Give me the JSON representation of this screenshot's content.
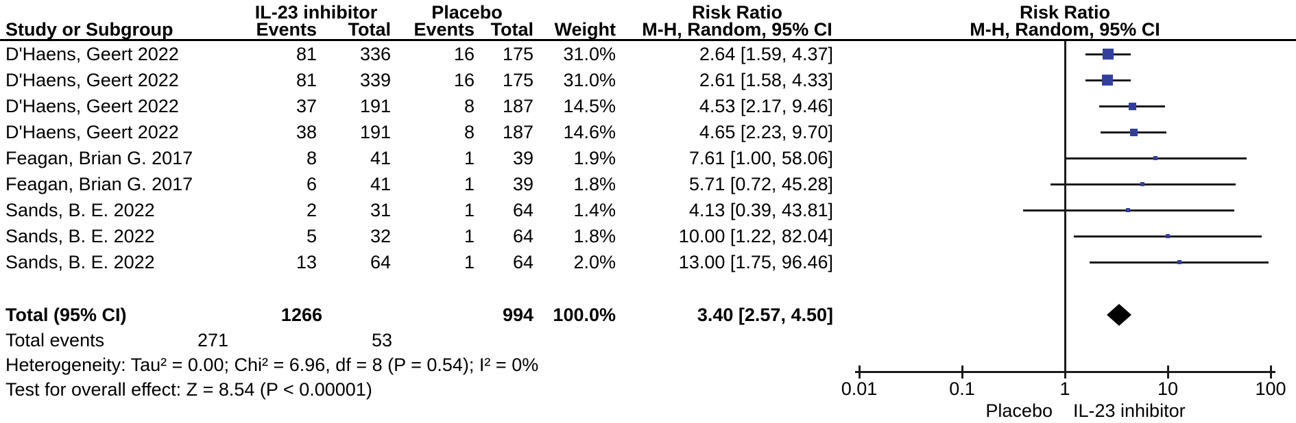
{
  "header": {
    "group1": "IL-23 inhibitor",
    "group2": "Placebo",
    "risk_ratio": "Risk Ratio",
    "method": "M-H, Random, 95% CI",
    "col_study": "Study or Subgroup",
    "col_events": "Events",
    "col_total": "Total",
    "col_weight": "Weight"
  },
  "studies": [
    {
      "name": "D'Haens, Geert 2022",
      "e1": "81",
      "t1": "336",
      "e2": "16",
      "t2": "175",
      "weight": "31.0%",
      "ci_text": "2.64 [1.59, 4.37]"
    },
    {
      "name": "D'Haens, Geert 2022",
      "e1": "81",
      "t1": "339",
      "e2": "16",
      "t2": "175",
      "weight": "31.0%",
      "ci_text": "2.61 [1.58, 4.33]"
    },
    {
      "name": "D'Haens, Geert 2022",
      "e1": "37",
      "t1": "191",
      "e2": "8",
      "t2": "187",
      "weight": "14.5%",
      "ci_text": "4.53 [2.17, 9.46]"
    },
    {
      "name": "D'Haens, Geert 2022",
      "e1": "38",
      "t1": "191",
      "e2": "8",
      "t2": "187",
      "weight": "14.6%",
      "ci_text": "4.65 [2.23, 9.70]"
    },
    {
      "name": "Feagan, Brian G. 2017",
      "e1": "8",
      "t1": "41",
      "e2": "1",
      "t2": "39",
      "weight": "1.9%",
      "ci_text": "7.61 [1.00, 58.06]"
    },
    {
      "name": "Feagan, Brian G. 2017",
      "e1": "6",
      "t1": "41",
      "e2": "1",
      "t2": "39",
      "weight": "1.8%",
      "ci_text": "5.71 [0.72, 45.28]"
    },
    {
      "name": "Sands, B. E. 2022",
      "e1": "2",
      "t1": "31",
      "e2": "1",
      "t2": "64",
      "weight": "1.4%",
      "ci_text": "4.13 [0.39, 43.81]"
    },
    {
      "name": "Sands, B. E. 2022",
      "e1": "5",
      "t1": "32",
      "e2": "1",
      "t2": "64",
      "weight": "1.8%",
      "ci_text": "10.00 [1.22, 82.04]"
    },
    {
      "name": "Sands, B. E. 2022",
      "e1": "13",
      "t1": "64",
      "e2": "1",
      "t2": "64",
      "weight": "2.0%",
      "ci_text": "13.00 [1.75, 96.46]"
    }
  ],
  "totals": {
    "label": "Total (95% CI)",
    "t1": "1266",
    "t2": "994",
    "weight": "100.0%",
    "ci_text": "3.40 [2.57, 4.50]",
    "events_label": "Total events",
    "e1": "271",
    "e2": "53"
  },
  "footer": {
    "heterogeneity": "Heterogeneity: Tau² = 0.00; Chi² = 6.96, df = 8 (P = 0.54); I² = 0%",
    "overall_effect": "Test for overall effect: Z = 8.54 (P < 0.00001)"
  },
  "axis": {
    "labels": [
      "0.01",
      "0.1",
      "1",
      "10",
      "100"
    ],
    "left_label": "Placebo",
    "right_label": "IL-23 inhibitor"
  },
  "colors": {
    "marker": "#333f9f",
    "diamond": "#000000",
    "line": "#1a1a1a"
  },
  "chart_data": {
    "type": "scatter",
    "variant": "forest-plot",
    "title": "Risk Ratio",
    "method": "M-H, Random, 95% CI",
    "x_scale": "log",
    "xlim": [
      0.01,
      100
    ],
    "x_ticks": [
      0.01,
      0.1,
      1,
      10,
      100
    ],
    "favors_left": "Placebo",
    "favors_right": "IL-23 inhibitor",
    "studies": [
      {
        "name": "D'Haens, Geert 2022",
        "rr": 2.64,
        "ci_low": 1.59,
        "ci_high": 4.37,
        "weight_pct": 31.0
      },
      {
        "name": "D'Haens, Geert 2022",
        "rr": 2.61,
        "ci_low": 1.58,
        "ci_high": 4.33,
        "weight_pct": 31.0
      },
      {
        "name": "D'Haens, Geert 2022",
        "rr": 4.53,
        "ci_low": 2.17,
        "ci_high": 9.46,
        "weight_pct": 14.5
      },
      {
        "name": "D'Haens, Geert 2022",
        "rr": 4.65,
        "ci_low": 2.23,
        "ci_high": 9.7,
        "weight_pct": 14.6
      },
      {
        "name": "Feagan, Brian G. 2017",
        "rr": 7.61,
        "ci_low": 1.0,
        "ci_high": 58.06,
        "weight_pct": 1.9
      },
      {
        "name": "Feagan, Brian G. 2017",
        "rr": 5.71,
        "ci_low": 0.72,
        "ci_high": 45.28,
        "weight_pct": 1.8
      },
      {
        "name": "Sands, B. E. 2022",
        "rr": 4.13,
        "ci_low": 0.39,
        "ci_high": 43.81,
        "weight_pct": 1.4
      },
      {
        "name": "Sands, B. E. 2022",
        "rr": 10.0,
        "ci_low": 1.22,
        "ci_high": 82.04,
        "weight_pct": 1.8
      },
      {
        "name": "Sands, B. E. 2022",
        "rr": 13.0,
        "ci_low": 1.75,
        "ci_high": 96.46,
        "weight_pct": 2.0
      }
    ],
    "pooled": {
      "label": "Total (95% CI)",
      "rr": 3.4,
      "ci_low": 2.57,
      "ci_high": 4.5,
      "weight_pct": 100.0
    }
  }
}
